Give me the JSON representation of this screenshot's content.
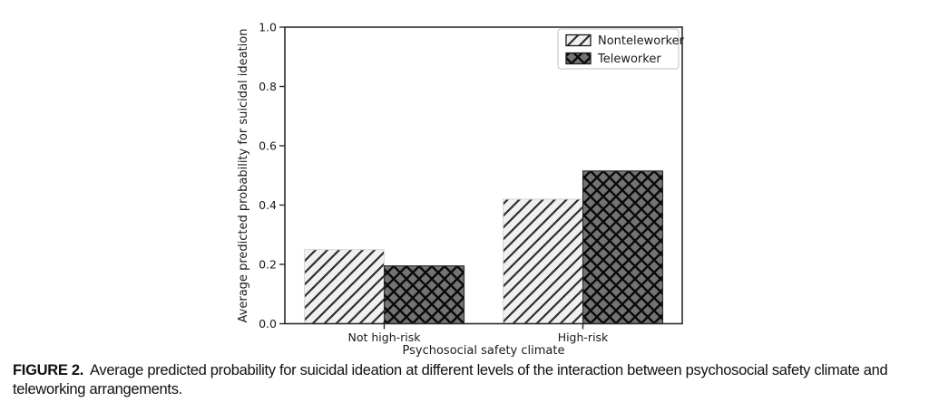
{
  "figure_caption": {
    "label": "FIGURE 2.",
    "text": "Average predicted probability for suicidal ideation at different levels of the interaction between psychosocial safety climate and teleworking arrangements."
  },
  "chart_data": {
    "type": "bar",
    "title": "",
    "categories": [
      "Not high-risk",
      "High-risk"
    ],
    "series": [
      {
        "name": "Nonteleworker",
        "values": [
          0.25,
          0.42
        ],
        "fill": "#f0f0f0",
        "hatch": "diagonal",
        "hatch_color": "#2e2e2e",
        "edge_color": "#d9d9d9"
      },
      {
        "name": "Teleworker",
        "values": [
          0.195,
          0.515
        ],
        "fill": "#737373",
        "hatch": "cross",
        "hatch_color": "#0a0a0a",
        "edge_color": "#2a2a2a"
      }
    ],
    "xlabel": "Psychosocial safety climate",
    "ylabel": "Average predicted probability for suicidal ideation",
    "ylim": [
      0.0,
      1.0
    ],
    "yticks": [
      0.0,
      0.2,
      0.4,
      0.6,
      0.8,
      1.0
    ],
    "grid": false,
    "legend": {
      "position": "upper right",
      "entries": [
        "Nonteleworker",
        "Teleworker"
      ]
    }
  },
  "colors": {
    "axis": "#2b2b2b",
    "text": "#1a1a1a",
    "background": "#ffffff",
    "legend_border": "#cccccc"
  }
}
